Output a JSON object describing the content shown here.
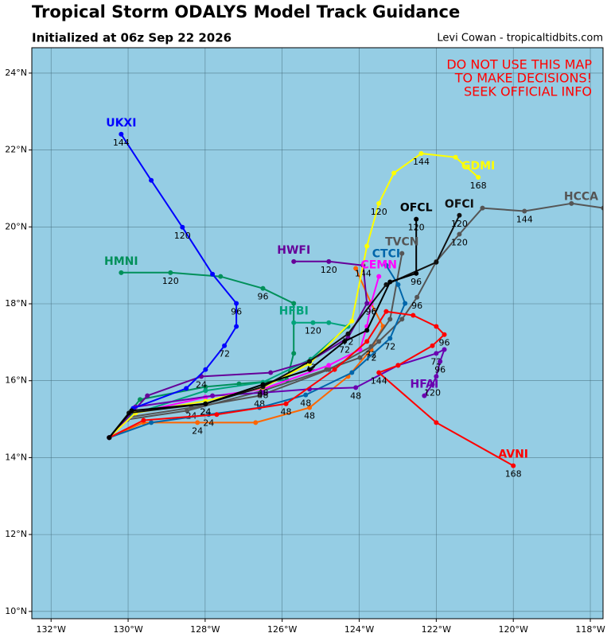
{
  "chart_data": {
    "type": "track",
    "title": "Tropical Storm ODALYS Model Track Guidance",
    "subtitle": "Initialized at 06z Sep 22 2026",
    "credit": "Levi Cowan - tropicaltidbits.com",
    "annotations": [
      "DO NOT USE THIS MAP",
      "TO MAKE DECISIONS!",
      "SEEK OFFICIAL INFO"
    ],
    "annotation_color": "#ff0000",
    "background": "#95cde4",
    "grid": true,
    "xlim": [
      -132.5,
      -117.67
    ],
    "ylim": [
      9.81,
      24.66
    ],
    "xticks": [
      {
        "value": -132,
        "label": "132°W"
      },
      {
        "value": -130,
        "label": "130°W"
      },
      {
        "value": -128,
        "label": "128°W"
      },
      {
        "value": -126,
        "label": "126°W"
      },
      {
        "value": -124,
        "label": "124°W"
      },
      {
        "value": -122,
        "label": "122°W"
      },
      {
        "value": -120,
        "label": "120°W"
      },
      {
        "value": -118,
        "label": "118°W"
      }
    ],
    "yticks": [
      {
        "value": 10,
        "label": "10°N"
      },
      {
        "value": 12,
        "label": "12°N"
      },
      {
        "value": 14,
        "label": "14°N"
      },
      {
        "value": 16,
        "label": "16°N"
      },
      {
        "value": 18,
        "label": "18°N"
      },
      {
        "value": 20,
        "label": "20°N"
      },
      {
        "value": 22,
        "label": "22°N"
      },
      {
        "value": 24,
        "label": "24°N"
      }
    ],
    "series": [
      {
        "color": "#ff6600",
        "x": [
          -130.49,
          -129.6,
          -128.2,
          -126.69,
          -125.29,
          -124.29,
          -123.69,
          -123.38,
          -123.69,
          -124.09
        ],
        "y": [
          14.52,
          14.91,
          14.91,
          14.91,
          15.3,
          16.11,
          16.81,
          17.41,
          18.01,
          18.92
        ],
        "labels": [
          null,
          null,
          24,
          null,
          48,
          null,
          72,
          null,
          96,
          null
        ]
      },
      {
        "name": "HCCA",
        "color": "#555555",
        "x": [
          -130.49,
          -130.02,
          -128.47,
          -126.5,
          -124.85,
          -123.98,
          -123.49,
          -122.89,
          -122.5,
          -122.0,
          -121.4,
          -120.8,
          -119.71,
          -118.49,
          -117.66
        ],
        "y": [
          14.52,
          14.99,
          15.22,
          15.74,
          16.29,
          16.6,
          17.02,
          17.6,
          18.17,
          19.1,
          19.81,
          20.49,
          20.41,
          20.61,
          20.49
        ],
        "labels": [
          null,
          null,
          null,
          null,
          null,
          null,
          null,
          null,
          96,
          null,
          120,
          null,
          144,
          null,
          null
        ]
      },
      {
        "name": "TVCN",
        "color": "#555555",
        "x": [
          -130.49,
          -129.98,
          -128.36,
          -126.59,
          -124.79,
          -123.69,
          -123.2,
          -122.89
        ],
        "y": [
          14.52,
          15.05,
          15.3,
          15.61,
          16.29,
          16.89,
          17.6,
          19.31
        ],
        "labels": [
          null,
          null,
          24,
          48,
          null,
          72,
          null,
          null
        ]
      },
      {
        "name": "HMNI",
        "color": "#00905a",
        "x": [
          -130.49,
          -129.69,
          -127.99,
          -127.12,
          -125.88,
          -125.7,
          -125.7,
          -126.5,
          -127.6,
          -128.9,
          -130.18
        ],
        "y": [
          14.52,
          15.51,
          15.84,
          15.92,
          16.02,
          16.71,
          18.01,
          18.4,
          18.71,
          18.81,
          18.81
        ],
        "labels": [
          null,
          null,
          null,
          null,
          null,
          null,
          null,
          96,
          null,
          120,
          null
        ]
      },
      {
        "name": "HFBI",
        "color": "#00a37a",
        "x": [
          -130.49,
          -129.91,
          -127.99,
          -126.5,
          -125.26,
          -124.29,
          -124.79,
          -125.2,
          -125.7
        ],
        "y": [
          14.52,
          15.12,
          15.74,
          15.96,
          16.56,
          17.41,
          17.51,
          17.51,
          17.51
        ],
        "labels": [
          null,
          null,
          null,
          null,
          72,
          null,
          null,
          120,
          null
        ]
      },
      {
        "name": "CEMN",
        "color": "#ff00ff",
        "x": [
          -130.49,
          -129.81,
          -127.99,
          -126.5,
          -124.79,
          -123.98,
          -123.8,
          -123.69,
          -123.49
        ],
        "y": [
          14.52,
          15.16,
          15.57,
          15.78,
          16.4,
          16.81,
          17.41,
          18.01,
          18.71
        ],
        "labels": [
          null,
          null,
          null,
          null,
          null,
          null,
          null,
          96,
          null
        ]
      },
      {
        "name": "CTCI",
        "color": "#0066aa",
        "x": [
          -130.49,
          -129.4,
          -127.91,
          -126.59,
          -125.39,
          -124.19,
          -123.2,
          -122.81,
          -122.99,
          -123.3
        ],
        "y": [
          14.52,
          14.91,
          15.12,
          15.3,
          15.63,
          16.21,
          17.1,
          18.01,
          18.5,
          19.0
        ],
        "labels": [
          null,
          null,
          24,
          null,
          48,
          null,
          72,
          null,
          null,
          null
        ]
      },
      {
        "name": "HWFI",
        "color": "#660099",
        "x": [
          -130.49,
          -129.5,
          -128.1,
          -126.3,
          -125.29,
          -124.29,
          -123.8,
          -123.9,
          -124.79,
          -125.7
        ],
        "y": [
          14.52,
          15.61,
          16.11,
          16.21,
          16.5,
          17.12,
          18.01,
          19.0,
          19.1,
          19.1
        ],
        "labels": [
          null,
          null,
          24,
          null,
          null,
          null,
          null,
          144,
          120,
          null
        ]
      },
      {
        "name": "HFAI",
        "color": "#6a00b0",
        "x": [
          -130.49,
          -129.81,
          -127.81,
          -126.5,
          -125.29,
          -124.09,
          -122.99,
          -122.0,
          -121.79,
          -121.9,
          -122.0,
          -122.1,
          -122.31
        ],
        "y": [
          14.52,
          15.32,
          15.61,
          15.69,
          15.78,
          15.82,
          16.4,
          16.71,
          16.81,
          16.5,
          16.11,
          15.9,
          15.61
        ],
        "labels": [
          null,
          null,
          null,
          null,
          null,
          48,
          null,
          72,
          null,
          96,
          null,
          120,
          null
        ]
      },
      {
        "name": "GDMI",
        "color": "#ffff00",
        "x": [
          -130.49,
          -129.81,
          -127.99,
          -126.5,
          -125.29,
          -124.19,
          -123.8,
          -123.49,
          -123.1,
          -122.39,
          -121.5,
          -120.91
        ],
        "y": [
          14.52,
          15.16,
          15.47,
          15.82,
          16.44,
          17.55,
          19.5,
          20.61,
          21.4,
          21.91,
          21.81,
          21.29
        ],
        "labels": [
          null,
          null,
          null,
          null,
          null,
          null,
          null,
          120,
          null,
          144,
          null,
          168
        ]
      },
      {
        "name": "AVNI",
        "color": "#ff0000",
        "x": [
          -130.49,
          -129.6,
          -127.7,
          -125.9,
          -124.64,
          -123.8,
          -123.3,
          -122.6,
          -122.0,
          -121.79,
          -122.1,
          -122.99,
          -123.49,
          -122.0,
          -120.0
        ],
        "y": [
          14.52,
          14.97,
          15.12,
          15.4,
          16.29,
          17.02,
          17.8,
          17.7,
          17.41,
          17.2,
          16.91,
          16.4,
          16.21,
          14.91,
          13.79
        ],
        "labels": [
          null,
          null,
          null,
          48,
          null,
          null,
          null,
          null,
          null,
          96,
          null,
          null,
          144,
          null,
          168
        ]
      },
      {
        "name": "UKXI",
        "color": "#0000ff",
        "x": [
          -130.49,
          -129.87,
          -128.49,
          -127.99,
          -127.5,
          -127.19,
          -127.19,
          -127.81,
          -128.59,
          -129.4,
          -130.18
        ],
        "y": [
          14.52,
          15.28,
          15.8,
          16.29,
          16.91,
          17.41,
          18.01,
          18.77,
          19.99,
          21.21,
          22.41
        ],
        "labels": [
          null,
          null,
          null,
          null,
          72,
          null,
          96,
          null,
          120,
          null,
          144
        ]
      },
      {
        "name": "OFCI",
        "color": "#111111",
        "x": [
          -130.49,
          -129.98,
          -127.99,
          -126.5,
          -125.29,
          -124.29,
          -123.3,
          -122.0,
          -121.4
        ],
        "y": [
          14.52,
          15.16,
          15.4,
          15.84,
          16.5,
          17.22,
          18.5,
          19.08,
          20.3
        ],
        "labels": [
          null,
          null,
          24,
          48,
          null,
          72,
          null,
          null,
          120
        ]
      },
      {
        "name": "OFCL",
        "color": "#000000",
        "x": [
          -130.49,
          -129.91,
          -127.99,
          -126.5,
          -125.29,
          -124.38,
          -123.8,
          -123.2,
          -122.52,
          -122.52
        ],
        "y": [
          14.52,
          15.22,
          15.4,
          15.9,
          16.29,
          17.02,
          17.31,
          18.57,
          18.79,
          20.2
        ],
        "labels": [
          null,
          null,
          24,
          48,
          null,
          72,
          null,
          null,
          96,
          120
        ]
      }
    ]
  }
}
